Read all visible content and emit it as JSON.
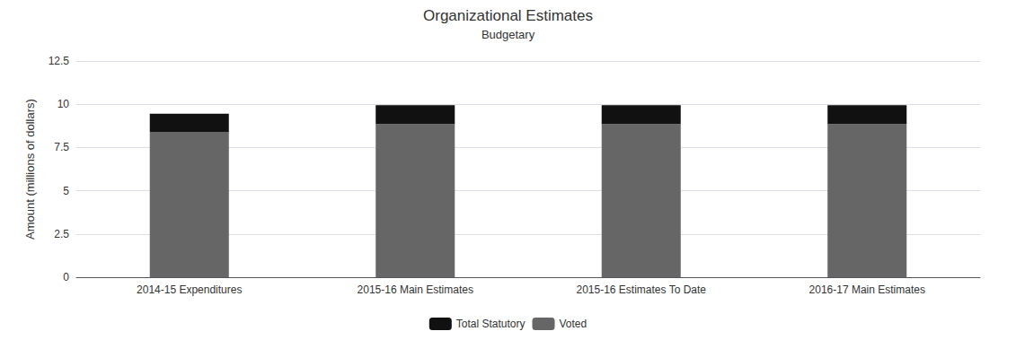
{
  "chart_data": {
    "type": "bar",
    "title": "Organizational Estimates",
    "subtitle": "Budgetary",
    "ylabel": "Amount (millions of dollars)",
    "categories": [
      "2014-15 Expenditures",
      "2015-16 Main Estimates",
      "2015-16 Estimates To Date",
      "2016-17 Main Estimates"
    ],
    "series": [
      {
        "name": "Voted",
        "color": "#666666",
        "values": [
          8.4,
          8.85,
          8.85,
          8.85
        ]
      },
      {
        "name": "Total Statutory",
        "color": "#111111",
        "values": [
          1.05,
          1.1,
          1.1,
          1.1
        ]
      }
    ],
    "stacked": true,
    "ylim": [
      0,
      12.5
    ],
    "yticks": [
      0,
      2.5,
      5,
      7.5,
      10,
      12.5
    ],
    "grid": true,
    "legend": "bottom"
  }
}
